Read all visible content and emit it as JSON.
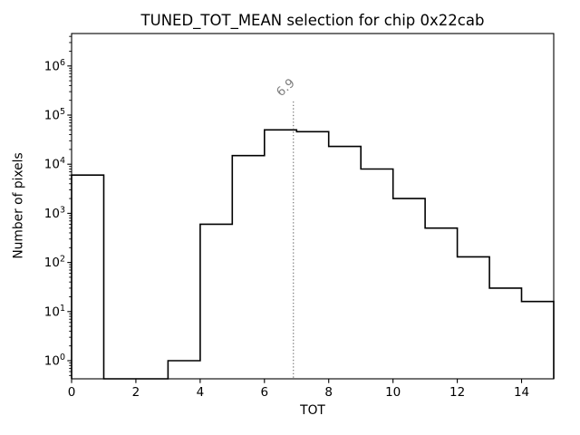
{
  "chart_data": {
    "type": "bar",
    "subtype": "step-histogram",
    "title": "TUNED_TOT_MEAN selection for chip 0x22cab",
    "xlabel": "TOT",
    "ylabel": "Number of pixels",
    "yscale": "log",
    "xlim": [
      0,
      15
    ],
    "ylim": [
      0.43,
      4600000
    ],
    "grid": false,
    "legend": null,
    "bin_edges": [
      0,
      1,
      2,
      3,
      4,
      5,
      6,
      7,
      8,
      9,
      10,
      11,
      12,
      13,
      14,
      15
    ],
    "counts": [
      6000,
      0,
      0,
      1,
      600,
      15000,
      50000,
      46000,
      23000,
      8000,
      2000,
      500,
      130,
      30,
      16
    ],
    "xtick_values": [
      0,
      2,
      4,
      6,
      8,
      10,
      12,
      14
    ],
    "xtick_labels": [
      "0",
      "2",
      "4",
      "6",
      "8",
      "10",
      "12",
      "14"
    ],
    "ytick_exponents": [
      0,
      1,
      2,
      3,
      4,
      5,
      6
    ],
    "ytick_labels": [
      "10⁰",
      "10¹",
      "10²",
      "10³",
      "10⁴",
      "10⁵",
      "10⁶"
    ],
    "line_color": "#000000",
    "annotation": {
      "x": 6.9,
      "label": "6.9",
      "color": "#7f7f7f",
      "line_style": "dotted",
      "label_rotation_deg": -42
    }
  }
}
